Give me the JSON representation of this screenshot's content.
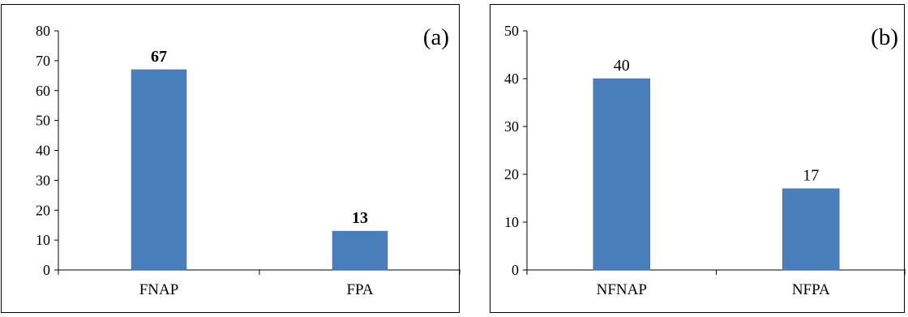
{
  "chart_data": [
    {
      "type": "bar",
      "panel_label": "(a)",
      "categories": [
        "FNAP",
        "FPA"
      ],
      "values": [
        67,
        13
      ],
      "data_labels": [
        "67",
        "13"
      ],
      "data_labels_bold": true,
      "ylim": [
        0,
        80
      ],
      "yticks": [
        0,
        10,
        20,
        30,
        40,
        50,
        60,
        70,
        80
      ],
      "bar_color": "#4a7ebb",
      "grid": false,
      "legend": "none"
    },
    {
      "type": "bar",
      "panel_label": "(b)",
      "categories": [
        "NFNAP",
        "NFPA"
      ],
      "values": [
        40,
        17
      ],
      "data_labels": [
        "40",
        "17"
      ],
      "data_labels_bold": false,
      "ylim": [
        0,
        50
      ],
      "yticks": [
        0,
        10,
        20,
        30,
        40,
        50
      ],
      "bar_color": "#4a7ebb",
      "grid": false,
      "legend": "none"
    }
  ]
}
